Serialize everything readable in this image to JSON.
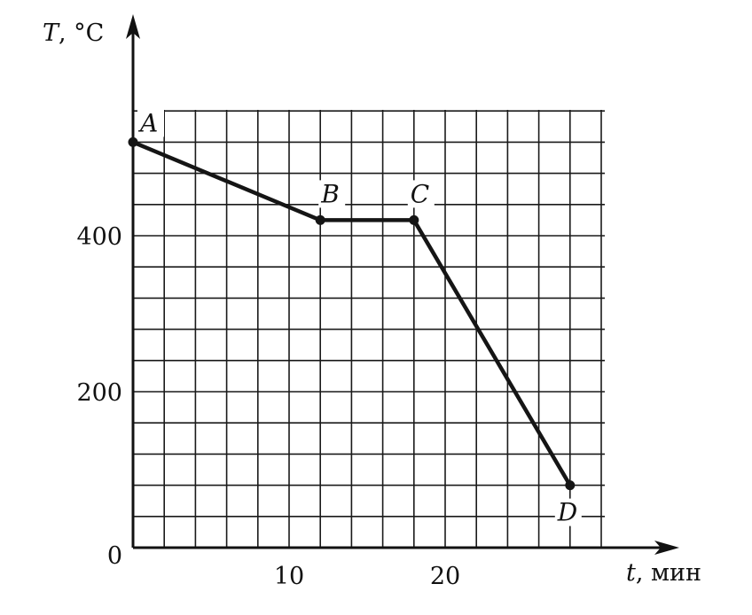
{
  "chart_data": {
    "type": "line",
    "title": "",
    "xlabel": {
      "symbol": "t",
      "unit": ", мин"
    },
    "ylabel": {
      "symbol": "T",
      "unit": ", °C"
    },
    "xlim": [
      0,
      30
    ],
    "ylim": [
      0,
      560
    ],
    "grid": true,
    "grid_x_step": 2,
    "grid_y_step": 40,
    "x_ticks": [
      {
        "value": 0,
        "label": "0"
      },
      {
        "value": 10,
        "label": "10"
      },
      {
        "value": 20,
        "label": "20"
      }
    ],
    "y_ticks": [
      {
        "value": 200,
        "label": "200"
      },
      {
        "value": 400,
        "label": "400"
      }
    ],
    "series": [
      {
        "points": [
          {
            "label": "A",
            "x": 0,
            "y": 520
          },
          {
            "label": "B",
            "x": 12,
            "y": 420
          },
          {
            "label": "C",
            "x": 18,
            "y": 420
          },
          {
            "label": "D",
            "x": 28,
            "y": 80
          }
        ]
      }
    ]
  }
}
